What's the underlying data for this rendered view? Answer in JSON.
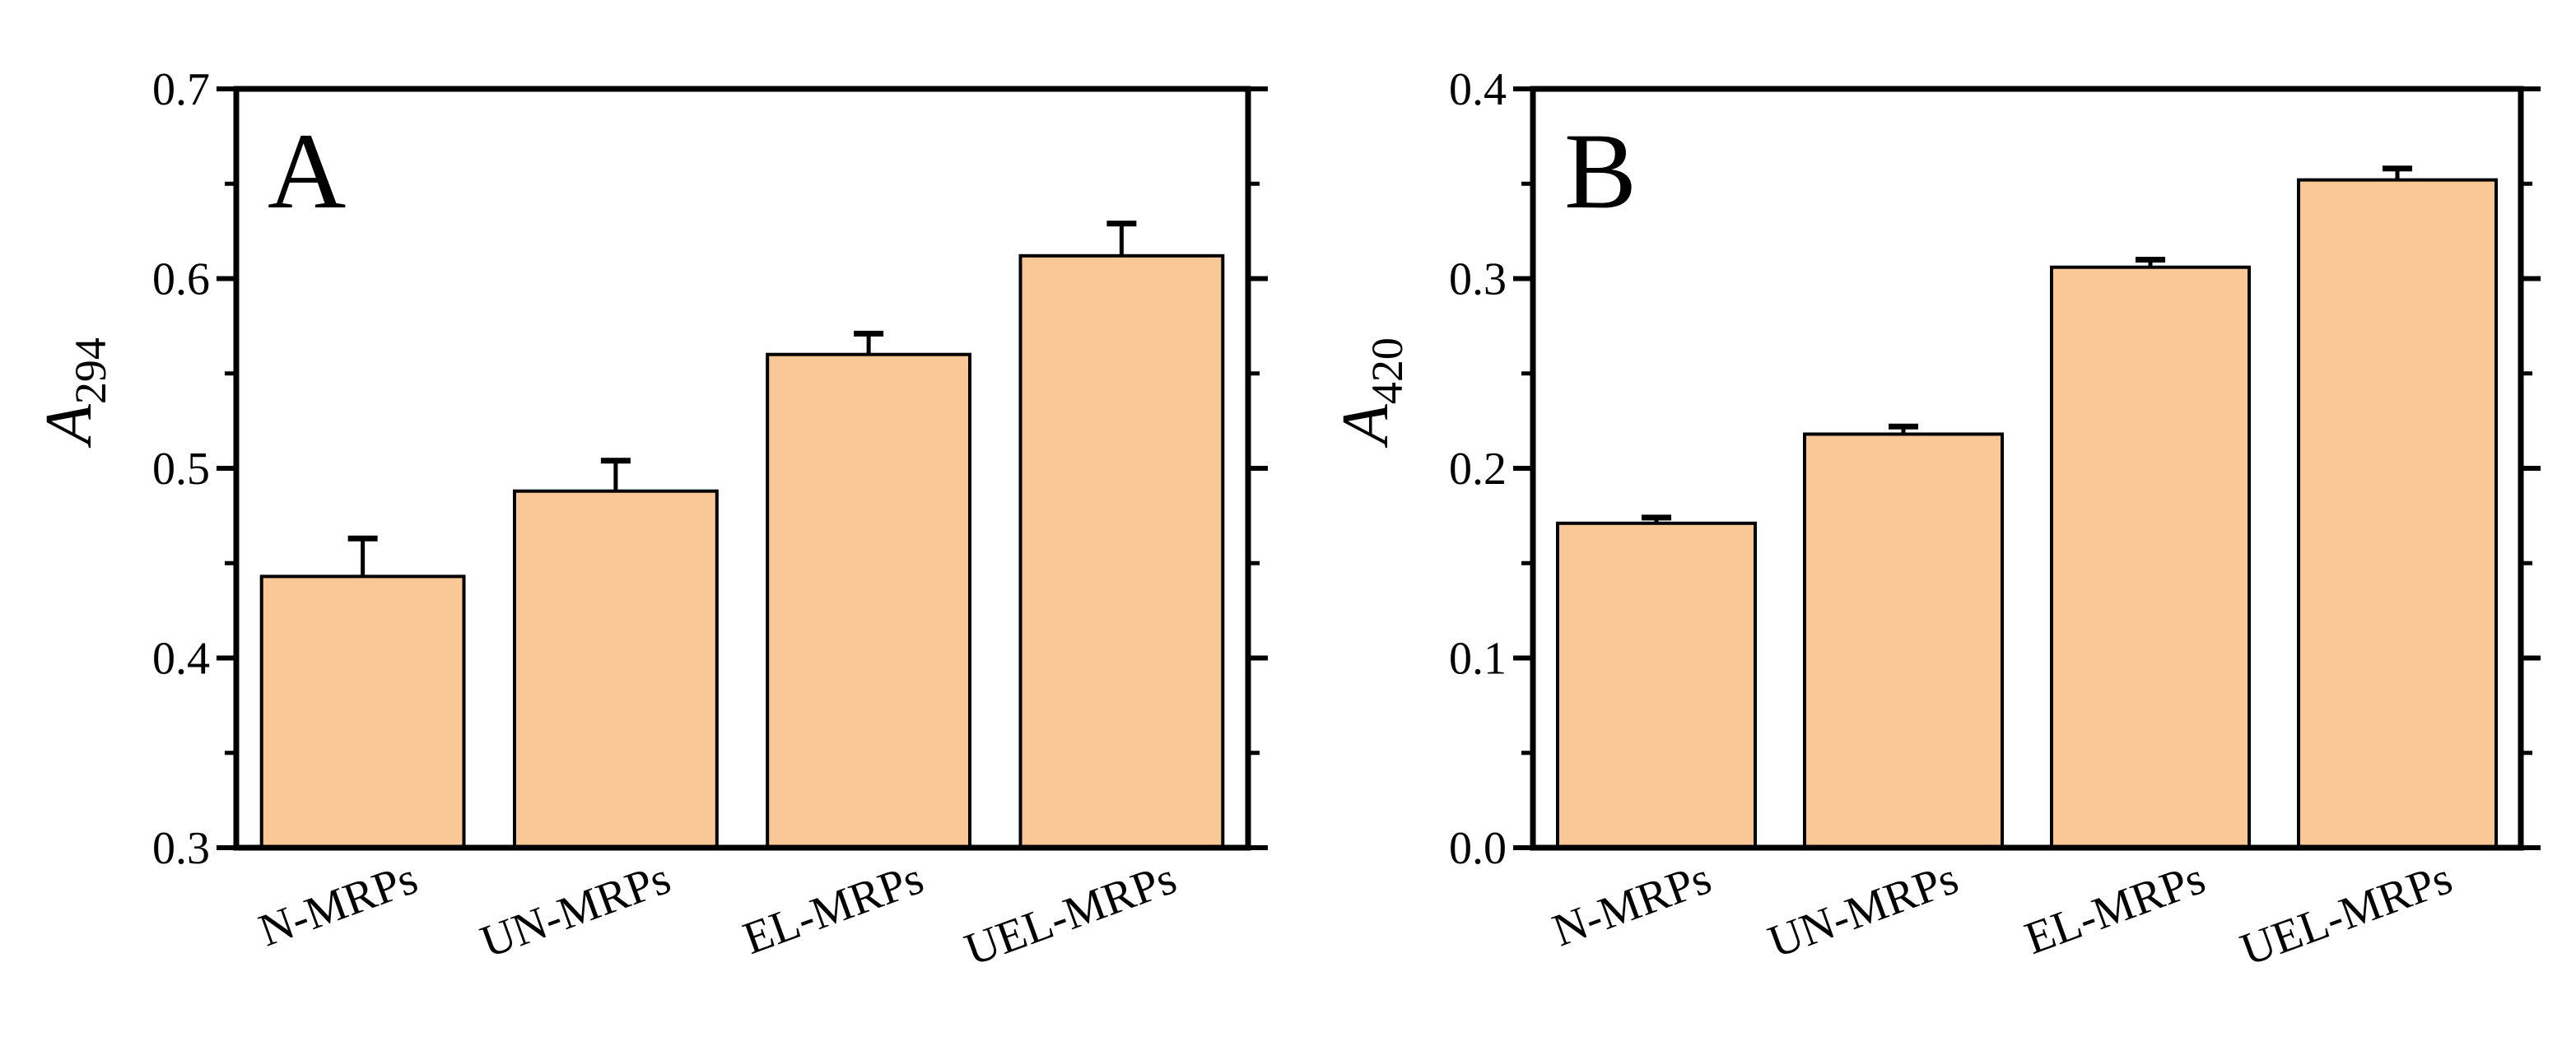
{
  "colors": {
    "bar_fill": "#FAC796",
    "bar_stroke": "#000000",
    "axis": "#000000"
  },
  "chart_data": [
    {
      "type": "bar",
      "panel_label": "A",
      "ylabel_main": "A",
      "ylabel_sub": "294",
      "categories": [
        "N-MRPs",
        "UN-MRPs",
        "EL-MRPs",
        "UEL-MRPs"
      ],
      "values": [
        0.443,
        0.488,
        0.56,
        0.612
      ],
      "errors": [
        0.02,
        0.016,
        0.011,
        0.017
      ],
      "ylim": [
        0.3,
        0.7
      ],
      "yticks": [
        "0.3",
        "0.4",
        "0.5",
        "0.6",
        "0.7"
      ],
      "ytick_values": [
        0.3,
        0.4,
        0.5,
        0.6,
        0.7
      ]
    },
    {
      "type": "bar",
      "panel_label": "B",
      "ylabel_main": "A",
      "ylabel_sub": "420",
      "categories": [
        "N-MRPs",
        "UN-MRPs",
        "EL-MRPs",
        "UEL-MRPs"
      ],
      "values": [
        0.171,
        0.218,
        0.306,
        0.352
      ],
      "errors": [
        0.003,
        0.004,
        0.004,
        0.006
      ],
      "ylim": [
        0.0,
        0.4
      ],
      "yticks": [
        "0.0",
        "0.1",
        "0.2",
        "0.3",
        "0.4"
      ],
      "ytick_values": [
        0.0,
        0.1,
        0.2,
        0.3,
        0.4
      ]
    }
  ]
}
